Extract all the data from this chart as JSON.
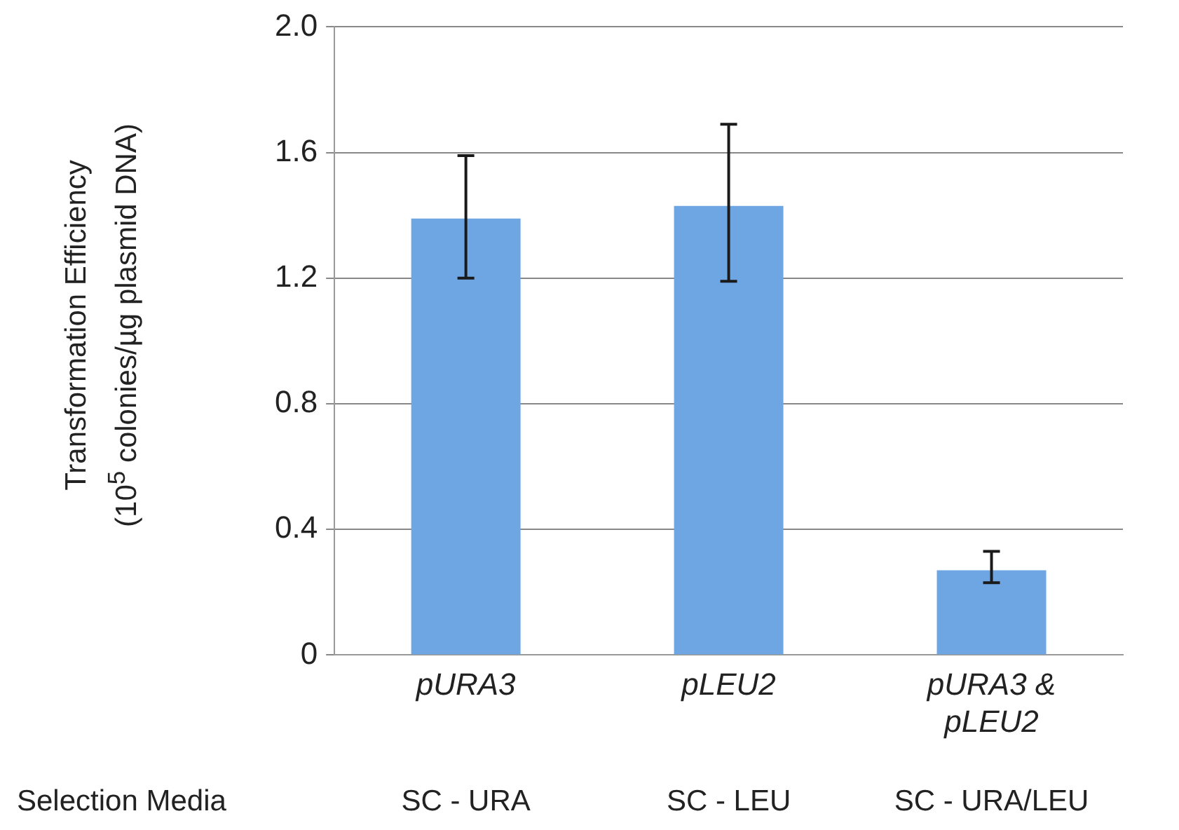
{
  "chart_data": {
    "type": "bar",
    "ylabel": "Transformation Efficiency\n(10$^{5}$ colonies/µg plasmid DNA)",
    "categories": [
      "pURA3",
      "pLEU2",
      "pURA3 & pLEU2"
    ],
    "values": [
      1.39,
      1.43,
      0.27
    ],
    "errors": [
      [
        1.2,
        1.59
      ],
      [
        1.19,
        1.69
      ],
      [
        0.23,
        0.33
      ]
    ],
    "color": "#6ea6e4",
    "ylim": [
      0,
      2.0
    ],
    "yticks": [
      {
        "value": 0,
        "label": "0"
      },
      {
        "value": 0.4,
        "label": "0.4"
      },
      {
        "value": 0.8,
        "label": "0.8"
      },
      {
        "value": 1.2,
        "label": "1.2"
      },
      {
        "value": 1.6,
        "label": "1.6"
      },
      {
        "value": 2.0,
        "label": "2.0"
      }
    ],
    "grid": "y",
    "legend": false,
    "annotations": [
      "Selection Media",
      "SC - URA",
      "SC - LEU",
      "SC - URA/LEU"
    ]
  }
}
